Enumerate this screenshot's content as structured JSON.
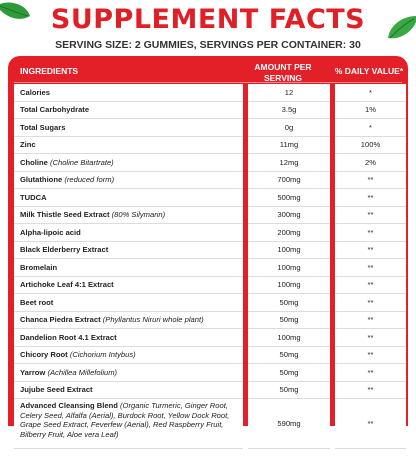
{
  "title": "SUPPLEMENT FACTS",
  "serving": "SERVING SIZE: 2 GUMMIES, SERVINGS PER CONTAINER: 30",
  "headers": {
    "ingredients": "INGREDIENTS",
    "amount": "AMOUNT PER SERVING",
    "dv": "% DAILY VALUE*"
  },
  "rows": [
    {
      "name": "Calories",
      "qual": "",
      "amount": "12",
      "dv": "*"
    },
    {
      "name": "Total Carbohydrate",
      "qual": "",
      "amount": "3.5g",
      "dv": "1%"
    },
    {
      "name": "Total Sugars",
      "qual": "",
      "amount": "0g",
      "dv": "*"
    },
    {
      "name": "Zinc",
      "qual": "",
      "amount": "11mg",
      "dv": "100%"
    },
    {
      "name": "Choline",
      "qual": "(Choline Bitartrate)",
      "amount": "12mg",
      "dv": "2%"
    },
    {
      "name": "Glutathione",
      "qual": "(reduced form)",
      "amount": "700mg",
      "dv": "**"
    },
    {
      "name": "TUDCA",
      "qual": "",
      "amount": "500mg",
      "dv": "**"
    },
    {
      "name": "Milk Thistle Seed Extract",
      "qual": "(80% Silymarin)",
      "amount": "300mg",
      "dv": "**"
    },
    {
      "name": "Alpha-lipoic acid",
      "qual": "",
      "amount": "200mg",
      "dv": "**"
    },
    {
      "name": "Black Elderberry Extract",
      "qual": "",
      "amount": "100mg",
      "dv": "**"
    },
    {
      "name": "Bromelain",
      "qual": "",
      "amount": "100mg",
      "dv": "**"
    },
    {
      "name": "Artichoke Leaf 4:1 Extract",
      "qual": "",
      "amount": "100mg",
      "dv": "**"
    },
    {
      "name": "Beet root",
      "qual": "",
      "amount": "50mg",
      "dv": "**"
    },
    {
      "name": "Chanca Piedra Extract",
      "qual": "(Phyllantus Niruri whole plant)",
      "amount": "50mg",
      "dv": "**"
    },
    {
      "name": "Dandelion Root 4.1 Extract",
      "qual": "",
      "amount": "100mg",
      "dv": "**"
    },
    {
      "name": "Chicory Root",
      "qual": "(Cichorium Intybus)",
      "amount": "50mg",
      "dv": "**"
    },
    {
      "name": "Yarrow",
      "qual": "(Achillea Millefolium)",
      "amount": "50mg",
      "dv": "**"
    },
    {
      "name": "Jujube Seed Extract",
      "qual": "",
      "amount": "50mg",
      "dv": "**"
    }
  ],
  "blend": {
    "name": "Advanced Cleansing Blend",
    "qual": "(Organic Turmeric, Ginger Root, Celery Seed, Alfalfa (Aerial), Burdock Root, Yellow Dock Root, Grape Seed Extract, Feverfew (Aerial), Red Raspberry Fruit, Bilberry Fruit, Aloe vera Leaf)",
    "amount": "590mg",
    "dv": "**"
  }
}
